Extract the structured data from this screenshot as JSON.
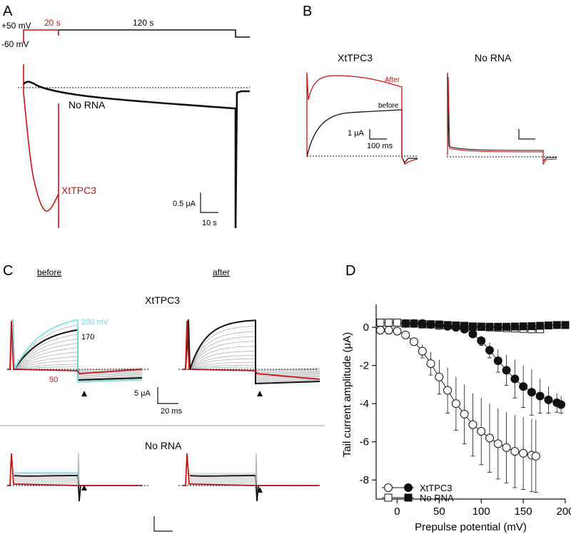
{
  "panels": {
    "a": {
      "letter": "A",
      "v_hold": "-60 mV",
      "v_step": "+50 mV",
      "dur1": "20 s",
      "dur2": "120 s",
      "trace1": "No RNA",
      "trace2": "XtTPC3",
      "scale_y": "0.5 μA",
      "scale_x": "10 s"
    },
    "b": {
      "letter": "B",
      "title_left": "XtTPC3",
      "title_right": "No RNA",
      "after": "After",
      "before": "before",
      "scale_y": "1 μA",
      "scale_x": "100 ms"
    },
    "c": {
      "letter": "C",
      "col1": "before",
      "col2": "after",
      "row1": "XtTPC3",
      "row2": "No RNA",
      "v_top": "200 mV",
      "v_mid": "170",
      "v_low": "50",
      "scale_y": "5 μA",
      "scale_x": "20 ms"
    },
    "d": {
      "letter": "D"
    }
  },
  "colors": {
    "red": "#cc1111",
    "cyan": "#7fe3f0",
    "black": "#111111",
    "gray": "#b0b0b0"
  },
  "chart_data": {
    "type": "scatter",
    "xlabel": "Prepulse potential (mV)",
    "ylabel": "Tail current amplitude (μA)",
    "xlim": [
      -25,
      200
    ],
    "ylim": [
      -9,
      1.2
    ],
    "xticks": [
      0,
      50,
      100,
      150,
      200
    ],
    "yticks": [
      0,
      -2,
      -4,
      -6,
      -8
    ],
    "legend_position": "bottom-left",
    "series": [
      {
        "name": "XtTPC3",
        "condition": "before",
        "marker": "open-circle",
        "x": [
          -20,
          -10,
          0,
          10,
          20,
          30,
          40,
          50,
          60,
          70,
          80,
          90,
          100,
          110,
          120,
          130,
          140,
          150,
          160,
          165
        ],
        "y": [
          -0.15,
          -0.15,
          -0.2,
          -0.4,
          -0.75,
          -1.25,
          -1.9,
          -2.6,
          -3.3,
          -4.0,
          -4.55,
          -5.1,
          -5.45,
          -5.8,
          -6.1,
          -6.3,
          -6.5,
          -6.6,
          -6.7,
          -6.75
        ],
        "err": [
          0.05,
          0.05,
          0.08,
          0.12,
          0.2,
          0.35,
          0.6,
          0.9,
          1.2,
          1.4,
          1.55,
          1.65,
          1.75,
          1.8,
          1.85,
          1.85,
          1.9,
          1.9,
          1.9,
          1.9
        ]
      },
      {
        "name": "XtTPC3",
        "condition": "after",
        "marker": "filled-circle",
        "x": [
          10,
          20,
          30,
          40,
          50,
          60,
          70,
          80,
          90,
          100,
          110,
          120,
          130,
          140,
          150,
          160,
          170,
          180,
          190,
          195
        ],
        "y": [
          0.2,
          0.2,
          0.2,
          0.15,
          0.1,
          0.05,
          0.0,
          -0.1,
          -0.35,
          -0.7,
          -1.2,
          -1.75,
          -2.25,
          -2.7,
          -3.1,
          -3.4,
          -3.6,
          -3.8,
          -3.95,
          -4.05
        ],
        "err": [
          0.05,
          0.05,
          0.05,
          0.05,
          0.05,
          0.05,
          0.05,
          0.1,
          0.15,
          0.25,
          0.4,
          0.6,
          0.8,
          1.0,
          1.1,
          1.2,
          0.9,
          0.7,
          0.5,
          0.45
        ]
      },
      {
        "name": "No RNA",
        "condition": "before",
        "marker": "open-square",
        "x": [
          -20,
          -10,
          0,
          10,
          20,
          30,
          40,
          50,
          60,
          70,
          80,
          90,
          100,
          110,
          120,
          130,
          140,
          150,
          160,
          170
        ],
        "y": [
          0.25,
          0.25,
          0.25,
          0.2,
          0.2,
          0.15,
          0.15,
          0.1,
          0.1,
          0.08,
          0.05,
          0.03,
          0.02,
          0.0,
          -0.02,
          -0.04,
          -0.06,
          -0.08,
          -0.1,
          -0.1
        ],
        "err": []
      },
      {
        "name": "No RNA",
        "condition": "after",
        "marker": "filled-square",
        "x": [
          10,
          20,
          30,
          40,
          50,
          60,
          70,
          80,
          90,
          100,
          110,
          120,
          130,
          140,
          150,
          160,
          170,
          180,
          190,
          200
        ],
        "y": [
          0.2,
          0.2,
          0.18,
          0.16,
          0.15,
          0.12,
          0.1,
          0.08,
          0.05,
          0.04,
          0.03,
          0.03,
          0.03,
          0.04,
          0.05,
          0.06,
          0.08,
          0.1,
          0.12,
          0.12
        ],
        "err": []
      }
    ]
  }
}
